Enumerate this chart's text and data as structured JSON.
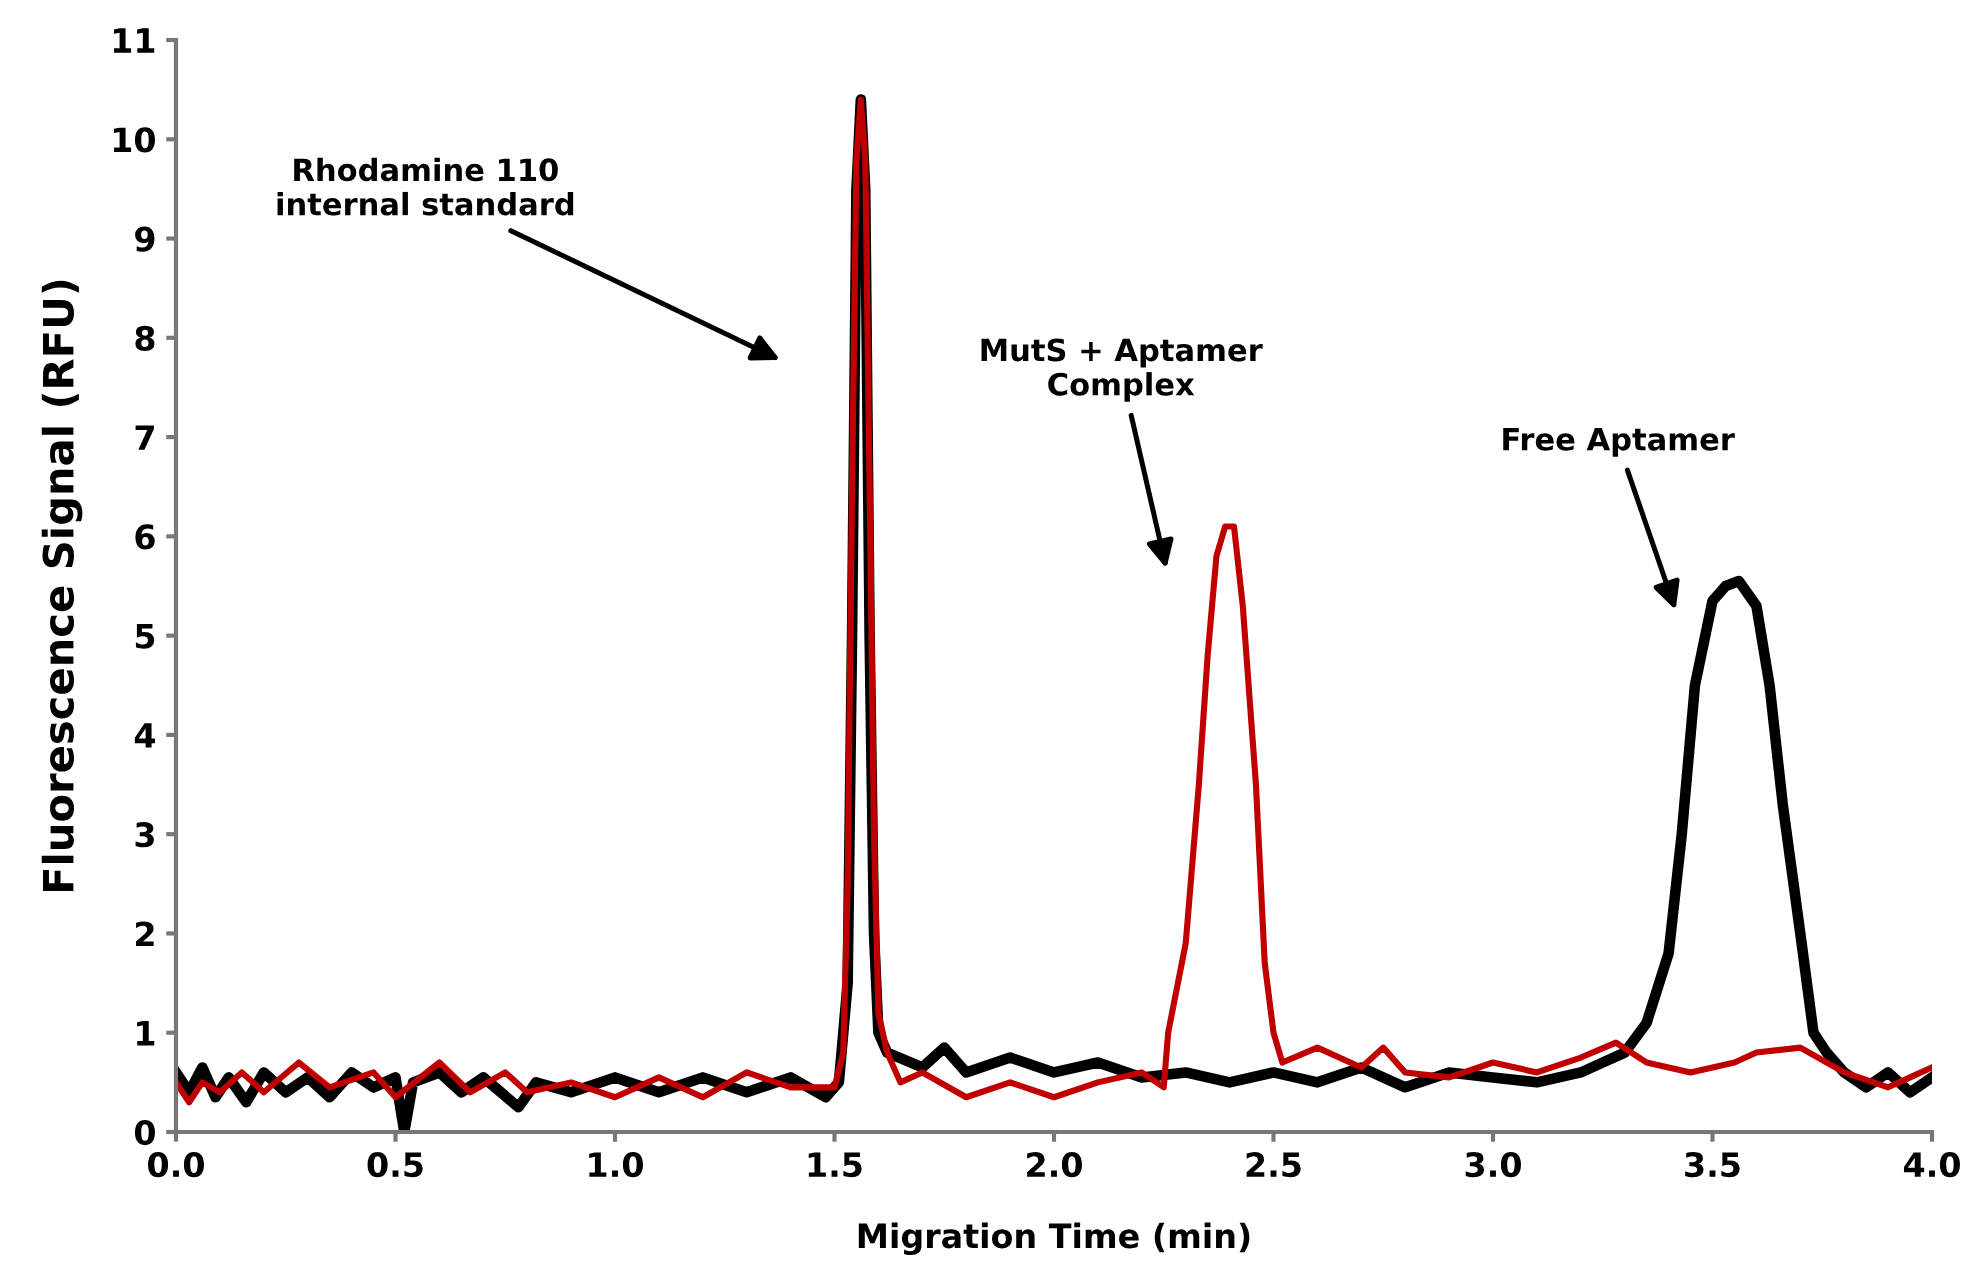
{
  "chart_data": {
    "type": "line",
    "xlabel": "Migration Time (min)",
    "ylabel": "Fluorescence Signal (RFU)",
    "xlim": [
      0,
      4
    ],
    "ylim": [
      0,
      11
    ],
    "xticks": [
      {
        "value": 0,
        "label": "0.0"
      },
      0.5,
      {
        "value": 1,
        "label": "1.0"
      },
      1.5,
      {
        "value": 2,
        "label": "2.0"
      },
      2.5,
      {
        "value": 3,
        "label": "3.0"
      },
      3.5,
      {
        "value": 4,
        "label": "4.0"
      }
    ],
    "yticks": [
      0,
      1,
      2,
      3,
      4,
      5,
      6,
      7,
      8,
      9,
      10,
      11
    ],
    "grid": false,
    "legend": false,
    "series": [
      {
        "color": "#000000",
        "x": [
          0,
          0.03,
          0.06,
          0.09,
          0.12,
          0.16,
          0.2,
          0.25,
          0.3,
          0.35,
          0.4,
          0.45,
          0.5,
          0.52,
          0.54,
          0.6,
          0.65,
          0.7,
          0.78,
          0.82,
          0.9,
          1.0,
          1.1,
          1.2,
          1.3,
          1.4,
          1.48,
          1.51,
          1.53,
          1.54,
          1.55,
          1.56,
          1.57,
          1.58,
          1.59,
          1.6,
          1.62,
          1.7,
          1.75,
          1.8,
          1.9,
          2.0,
          2.1,
          2.2,
          2.3,
          2.4,
          2.5,
          2.6,
          2.7,
          2.8,
          2.9,
          3.0,
          3.1,
          3.2,
          3.25,
          3.3,
          3.35,
          3.4,
          3.43,
          3.46,
          3.5,
          3.53,
          3.56,
          3.6,
          3.63,
          3.66,
          3.7,
          3.73,
          3.76,
          3.8,
          3.85,
          3.9,
          3.95,
          4.0
        ],
        "values": [
          0.6,
          0.4,
          0.65,
          0.35,
          0.55,
          0.3,
          0.6,
          0.4,
          0.55,
          0.35,
          0.6,
          0.45,
          0.55,
          0.0,
          0.5,
          0.6,
          0.4,
          0.55,
          0.25,
          0.5,
          0.4,
          0.55,
          0.4,
          0.55,
          0.4,
          0.55,
          0.35,
          0.5,
          1.5,
          5,
          9.5,
          10.4,
          9.5,
          5,
          2,
          1.0,
          0.8,
          0.65,
          0.85,
          0.6,
          0.75,
          0.6,
          0.7,
          0.55,
          0.6,
          0.5,
          0.6,
          0.5,
          0.65,
          0.45,
          0.6,
          0.55,
          0.5,
          0.6,
          0.7,
          0.8,
          1.1,
          1.8,
          3.0,
          4.5,
          5.35,
          5.5,
          5.55,
          5.3,
          4.5,
          3.3,
          2.0,
          1.0,
          0.8,
          0.6,
          0.45,
          0.6,
          0.4,
          0.55
        ]
      },
      {
        "color": "#c00000",
        "x": [
          0,
          0.03,
          0.06,
          0.1,
          0.15,
          0.2,
          0.28,
          0.35,
          0.45,
          0.5,
          0.6,
          0.67,
          0.75,
          0.8,
          0.9,
          1.0,
          1.1,
          1.2,
          1.3,
          1.4,
          1.5,
          1.52,
          1.53,
          1.54,
          1.55,
          1.56,
          1.57,
          1.58,
          1.59,
          1.6,
          1.62,
          1.65,
          1.7,
          1.8,
          1.9,
          2.0,
          2.1,
          2.2,
          2.25,
          2.26,
          2.3,
          2.33,
          2.35,
          2.37,
          2.39,
          2.41,
          2.43,
          2.46,
          2.48,
          2.5,
          2.52,
          2.6,
          2.7,
          2.75,
          2.8,
          2.9,
          3.0,
          3.1,
          3.2,
          3.28,
          3.35,
          3.45,
          3.55,
          3.6,
          3.7,
          3.8,
          3.9,
          3.95,
          4.0
        ],
        "values": [
          0.5,
          0.3,
          0.5,
          0.4,
          0.6,
          0.4,
          0.7,
          0.45,
          0.6,
          0.35,
          0.7,
          0.4,
          0.6,
          0.4,
          0.5,
          0.35,
          0.55,
          0.35,
          0.6,
          0.45,
          0.45,
          0.8,
          2.5,
          6.5,
          9.8,
          10.4,
          9.8,
          6.5,
          3,
          1.2,
          0.8,
          0.5,
          0.6,
          0.35,
          0.5,
          0.35,
          0.5,
          0.6,
          0.45,
          1.0,
          1.9,
          3.5,
          4.8,
          5.8,
          6.1,
          6.1,
          5.3,
          3.5,
          1.7,
          1.0,
          0.7,
          0.85,
          0.65,
          0.85,
          0.6,
          0.55,
          0.7,
          0.6,
          0.75,
          0.9,
          0.7,
          0.6,
          0.7,
          0.8,
          0.85,
          0.6,
          0.45,
          0.55,
          0.65
        ]
      }
    ],
    "annotations": [
      "Rhodamine 110\ninternal standard",
      "MutS + Aptamer\nComplex",
      "Free Aptamer"
    ]
  }
}
